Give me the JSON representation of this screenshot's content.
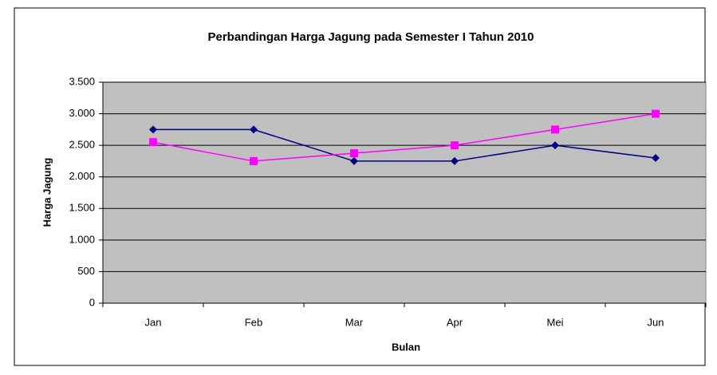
{
  "chart_data": {
    "type": "line",
    "title": "Perbandingan Harga Jagung pada Semester I Tahun 2010",
    "xlabel": "Bulan",
    "ylabel": "Harga Jagung",
    "categories": [
      "Jan",
      "Feb",
      "Mar",
      "Apr",
      "Mei",
      "Jun"
    ],
    "series": [
      {
        "color": "#000080",
        "marker": "diamond",
        "values": [
          2750,
          2750,
          2250,
          2250,
          2500,
          2300
        ]
      },
      {
        "color": "#ff00ff",
        "marker": "square",
        "values": [
          2550,
          2250,
          2375,
          2500,
          2750,
          3000
        ]
      }
    ],
    "ylim": [
      0,
      3500
    ],
    "yticks": [
      0,
      500,
      {
        "value": 1000,
        "label": "1.000"
      },
      {
        "value": 1500,
        "label": "1.500"
      },
      {
        "value": 2000,
        "label": "2.000"
      },
      {
        "value": 2500,
        "label": "2.500"
      },
      {
        "value": 3000,
        "label": "3.000"
      },
      {
        "value": 3500,
        "label": "3.500"
      }
    ],
    "grid": true
  }
}
